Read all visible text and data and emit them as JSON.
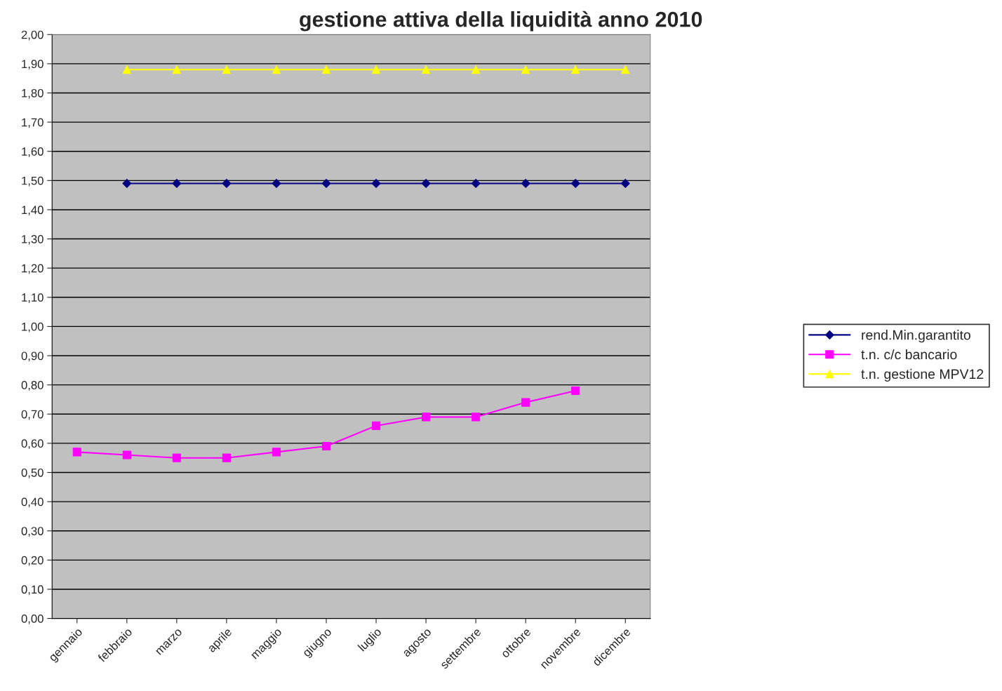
{
  "chart_data": {
    "type": "line",
    "title": "gestione attiva della liquidità anno 2010",
    "categories": [
      "gennaio",
      "febbraio",
      "marzo",
      "aprile",
      "maggio",
      "giugno",
      "luglio",
      "agosto",
      "settembre",
      "ottobre",
      "novembre",
      "dicembre"
    ],
    "series": [
      {
        "name": "rend.Min.garantito",
        "color": "#000080",
        "marker": "diamond",
        "values": [
          null,
          1.49,
          1.49,
          1.49,
          1.49,
          1.49,
          1.49,
          1.49,
          1.49,
          1.49,
          1.49,
          1.49
        ]
      },
      {
        "name": "t.n. c/c bancario",
        "color": "#ff00ff",
        "marker": "square",
        "values": [
          0.57,
          0.56,
          0.55,
          0.55,
          0.57,
          0.59,
          0.66,
          0.69,
          0.69,
          0.74,
          0.78,
          null
        ]
      },
      {
        "name": "t.n. gestione MPV12",
        "color": "#ffff00",
        "marker": "triangle",
        "values": [
          null,
          1.88,
          1.88,
          1.88,
          1.88,
          1.88,
          1.88,
          1.88,
          1.88,
          1.88,
          1.88,
          1.88
        ]
      }
    ],
    "ylim": [
      0,
      2
    ],
    "yticks": [
      {
        "value": 0,
        "label": "0,00"
      },
      {
        "value": 0.1,
        "label": "0,10"
      },
      {
        "value": 0.2,
        "label": "0,20"
      },
      {
        "value": 0.3,
        "label": "0,30"
      },
      {
        "value": 0.4,
        "label": "0,40"
      },
      {
        "value": 0.5,
        "label": "0,50"
      },
      {
        "value": 0.6,
        "label": "0,60"
      },
      {
        "value": 0.7,
        "label": "0,70"
      },
      {
        "value": 0.8,
        "label": "0,80"
      },
      {
        "value": 0.9,
        "label": "0,90"
      },
      {
        "value": 1.0,
        "label": "1,00"
      },
      {
        "value": 1.1,
        "label": "1,10"
      },
      {
        "value": 1.2,
        "label": "1,20"
      },
      {
        "value": 1.3,
        "label": "1,30"
      },
      {
        "value": 1.4,
        "label": "1,40"
      },
      {
        "value": 1.5,
        "label": "1,50"
      },
      {
        "value": 1.6,
        "label": "1,60"
      },
      {
        "value": 1.7,
        "label": "1,70"
      },
      {
        "value": 1.8,
        "label": "1,80"
      },
      {
        "value": 1.9,
        "label": "1,90"
      },
      {
        "value": 2.0,
        "label": "2,00"
      }
    ],
    "grid": "y",
    "legend": "right",
    "line_style": "solid"
  }
}
